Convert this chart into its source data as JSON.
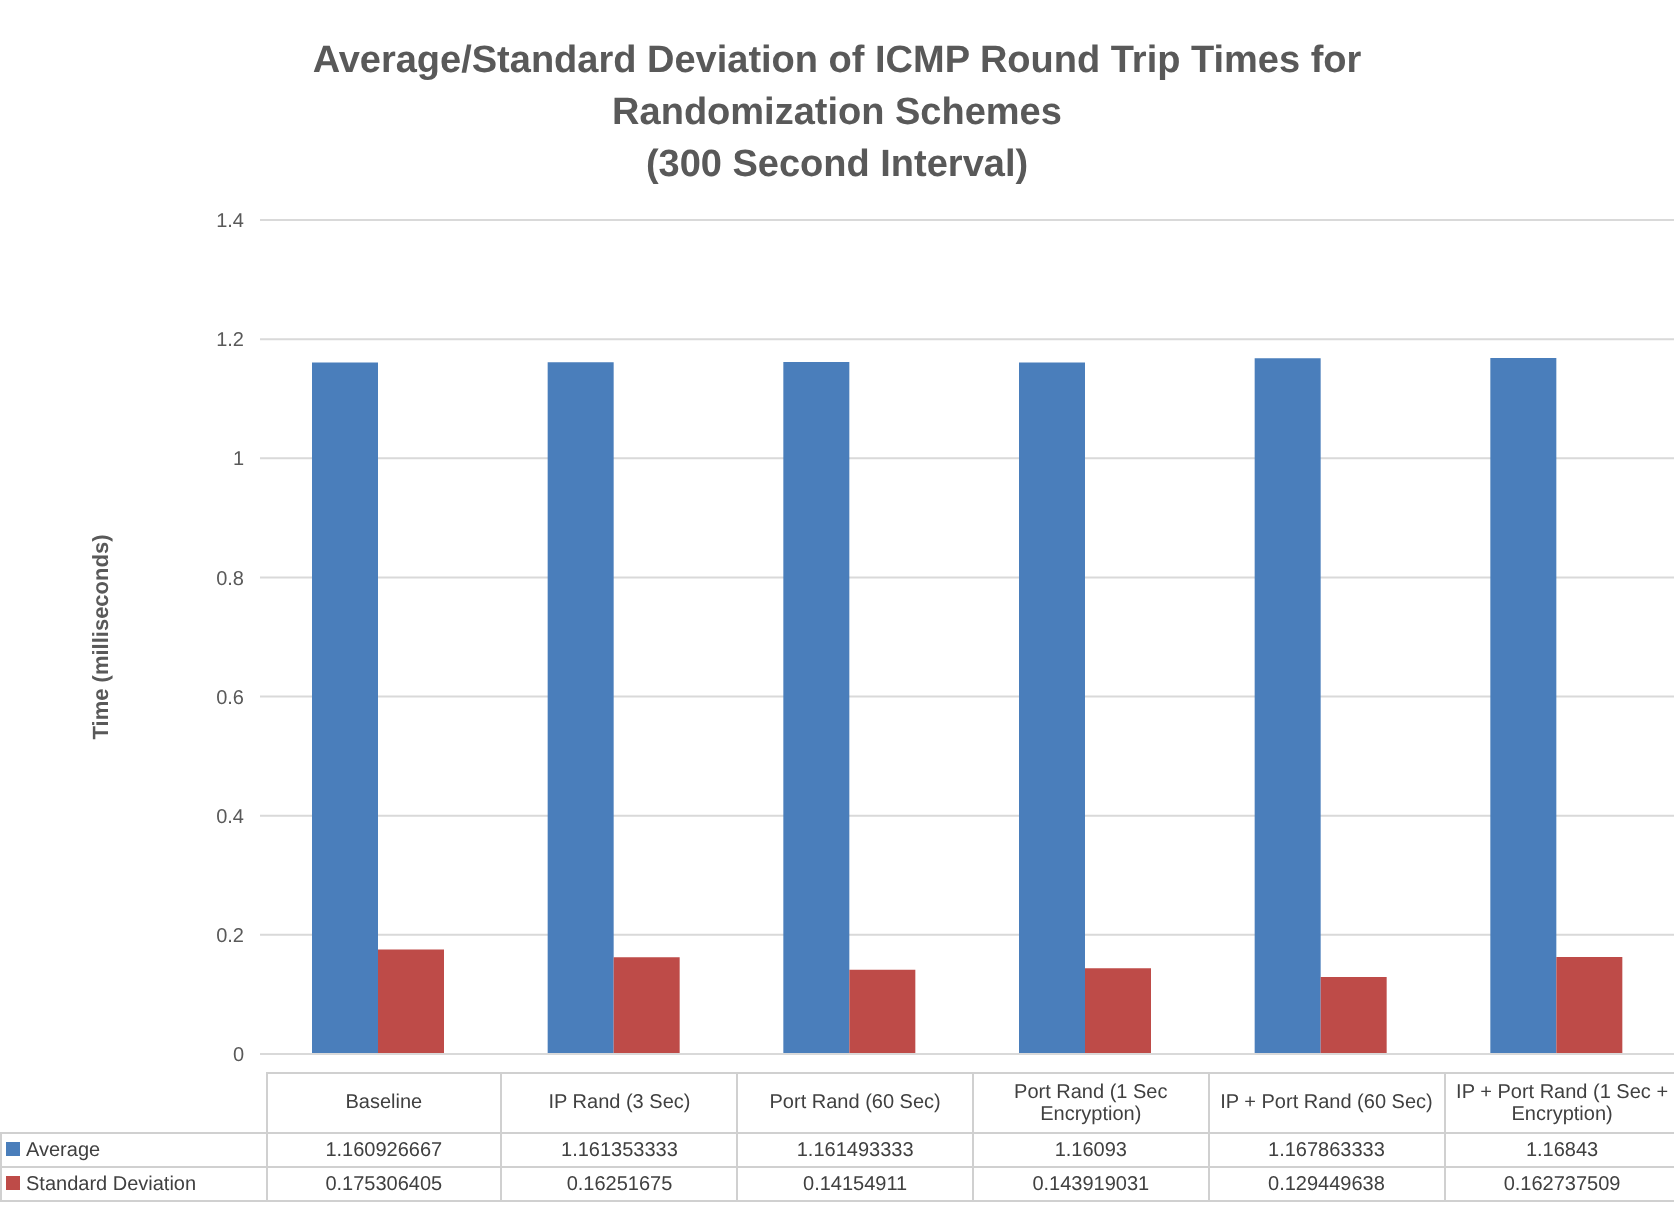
{
  "chart_data": {
    "type": "bar",
    "title": "Average/Standard Deviation of ICMP Round Trip Times for\nRandomization Schemes\n(300 Second Interval)",
    "ylabel": "Time (milliseconds)",
    "categories": [
      "Baseline",
      "IP Rand (3 Sec)",
      "Port Rand (60 Sec)",
      "Port Rand (1 Sec Encryption)",
      "IP + Port Rand (60 Sec)",
      "IP + Port Rand (1 Sec + Encryption)"
    ],
    "series": [
      {
        "name": "Average",
        "color": "#4a7ebb",
        "values": [
          1.160926667,
          1.161353333,
          1.161493333,
          1.16093,
          1.167863333,
          1.16843
        ]
      },
      {
        "name": "Standard Deviation",
        "color": "#be4b48",
        "values": [
          0.175306405,
          0.16251675,
          0.14154911,
          0.143919031,
          0.129449638,
          0.162737509
        ]
      }
    ],
    "ylim": [
      0,
      1.4
    ],
    "yticks": [
      0,
      0.2,
      0.4,
      0.6,
      0.8,
      1,
      1.2,
      1.4
    ],
    "grid": "y",
    "legend": "bottom",
    "data_labels": true
  }
}
